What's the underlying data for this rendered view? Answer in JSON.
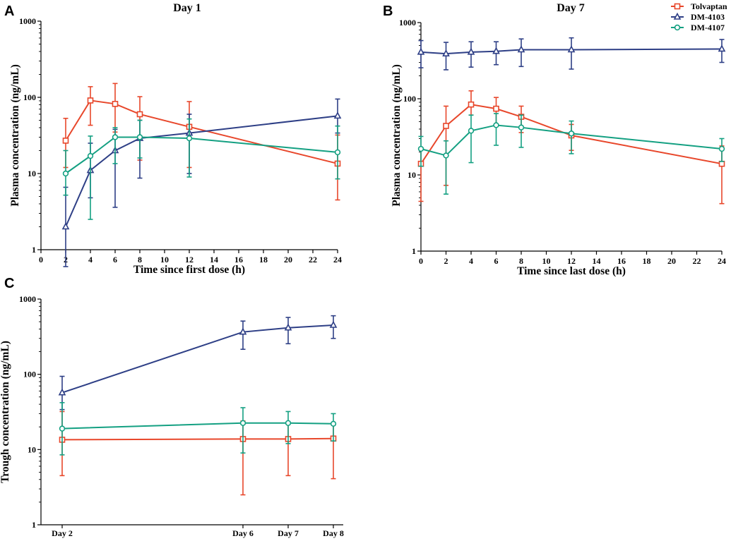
{
  "chart_data": [
    {
      "panel": "A",
      "type": "line",
      "title": "Day 1",
      "xlabel": "Time since first dose (h)",
      "ylabel": "Plasma concentration (ng/mL)",
      "yscale": "log",
      "xlim": [
        0,
        24
      ],
      "ylim": [
        1,
        1000
      ],
      "xticks": [
        0,
        2,
        4,
        6,
        8,
        10,
        12,
        14,
        16,
        18,
        20,
        22,
        24
      ],
      "yticks": [
        1,
        10,
        100,
        1000
      ],
      "series": [
        {
          "name": "Tolvaptan",
          "marker": "square",
          "x": [
            2,
            4,
            6,
            8,
            12,
            24
          ],
          "y": [
            27,
            91,
            82,
            60,
            41,
            13.5
          ],
          "err_low": [
            12,
            43,
            35,
            15,
            12,
            4.5
          ],
          "err_high": [
            53,
            138,
            152,
            102,
            88,
            32
          ]
        },
        {
          "name": "DM-4103",
          "marker": "triangle",
          "x": [
            2,
            4,
            6,
            8,
            12,
            24
          ],
          "y": [
            2,
            11,
            20,
            29,
            34,
            57
          ],
          "err_low": [
            0.6,
            4.8,
            3.6,
            8.7,
            10,
            34
          ],
          "err_high": [
            6.6,
            25,
            38,
            50,
            60,
            95
          ]
        },
        {
          "name": "DM-4107",
          "marker": "circle",
          "x": [
            2,
            4,
            6,
            8,
            12,
            24
          ],
          "y": [
            10,
            17,
            30,
            30,
            29,
            19
          ],
          "err_low": [
            5.2,
            2.5,
            13.5,
            16,
            9,
            8.5
          ],
          "err_high": [
            20,
            31,
            40,
            50,
            52,
            42
          ]
        }
      ]
    },
    {
      "panel": "B",
      "type": "line",
      "title": "Day 7",
      "xlabel": "Time since last dose (h)",
      "ylabel": "Plasma concentration (ng/mL)",
      "yscale": "log",
      "xlim": [
        0,
        24
      ],
      "ylim": [
        1,
        1000
      ],
      "xticks": [
        0,
        2,
        4,
        6,
        8,
        10,
        12,
        14,
        16,
        18,
        20,
        22,
        24
      ],
      "yticks": [
        1,
        10,
        100,
        1000
      ],
      "legend": "top-right",
      "series": [
        {
          "name": "Tolvaptan",
          "marker": "square",
          "x": [
            0,
            2,
            4,
            6,
            8,
            12,
            24
          ],
          "y": [
            14,
            44,
            84,
            74,
            58,
            33,
            14
          ],
          "err_low": [
            4.5,
            7.3,
            61,
            46,
            36,
            21,
            4.2
          ],
          "err_high": [
            22,
            80,
            127,
            104,
            80,
            46,
            24
          ]
        },
        {
          "name": "DM-4103",
          "marker": "triangle",
          "x": [
            0,
            2,
            4,
            6,
            8,
            12,
            24
          ],
          "y": [
            410,
            390,
            410,
            420,
            440,
            440,
            450
          ],
          "err_low": [
            255,
            240,
            260,
            280,
            265,
            245,
            300
          ],
          "err_high": [
            580,
            550,
            560,
            560,
            610,
            630,
            600
          ]
        },
        {
          "name": "DM-4107",
          "marker": "circle",
          "x": [
            0,
            2,
            4,
            6,
            8,
            12,
            24
          ],
          "y": [
            22,
            18,
            38,
            45,
            42,
            35,
            22
          ],
          "err_low": [
            13,
            5.6,
            14.5,
            24.5,
            23,
            19,
            15
          ],
          "err_high": [
            32,
            28,
            61,
            64,
            61,
            51,
            30
          ]
        }
      ]
    },
    {
      "panel": "C",
      "type": "line",
      "title": "",
      "xlabel": "",
      "ylabel": "Trough concentration (ng/mL)",
      "yscale": "log",
      "categories": [
        "Day 2",
        "Day 6",
        "Day 7",
        "Day 8"
      ],
      "x": [
        2,
        6,
        7,
        8
      ],
      "ylim": [
        1,
        1000
      ],
      "yticks": [
        1,
        10,
        100,
        1000
      ],
      "series": [
        {
          "name": "Tolvaptan",
          "marker": "square",
          "y": [
            13.5,
            13.8,
            13.8,
            14
          ],
          "err_low": [
            4.5,
            2.5,
            4.5,
            4.1
          ],
          "err_high": [
            32,
            24,
            23,
            22
          ]
        },
        {
          "name": "DM-4103",
          "marker": "triangle",
          "y": [
            57,
            365,
            415,
            450
          ],
          "err_low": [
            34,
            215,
            255,
            300
          ],
          "err_high": [
            94,
            510,
            570,
            600
          ]
        },
        {
          "name": "DM-4107",
          "marker": "circle",
          "y": [
            19,
            22.5,
            22.5,
            22
          ],
          "err_low": [
            8.5,
            9,
            12,
            13
          ],
          "err_high": [
            42,
            36,
            32,
            30
          ]
        }
      ]
    }
  ],
  "legend": {
    "entries": [
      "Tolvaptan",
      "DM-4103",
      "DM-4107"
    ]
  },
  "colors": {
    "Tolvaptan": "#e8472b",
    "DM-4103": "#2e3f86",
    "DM-4107": "#14a082",
    "axis": "#000000"
  }
}
